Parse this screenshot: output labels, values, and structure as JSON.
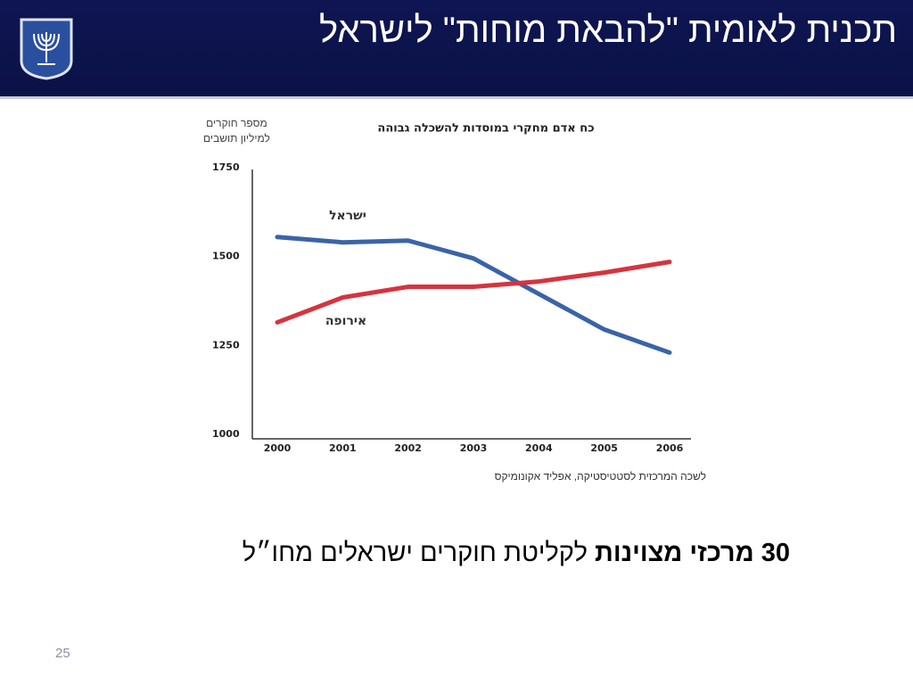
{
  "header": {
    "title": "תכנית לאומית \"להבאת מוחות\" לישראל"
  },
  "chart_data": {
    "type": "line",
    "title": "כח אדם מחקרי במוסדות להשכלה גבוהה",
    "ylabel": [
      "מספר חוקרים",
      "למיליון תושבים"
    ],
    "source": "לשכה המרכזית לסטטיסטיקה, אפליד אקונומיקס",
    "categories": [
      "2000",
      "2001",
      "2002",
      "2003",
      "2004",
      "2005",
      "2006"
    ],
    "series": [
      {
        "name": "ישראל",
        "color": "#3a64a6",
        "values": [
          1555,
          1540,
          1545,
          1495,
          1395,
          1295,
          1230
        ]
      },
      {
        "name": "אירופה",
        "color": "#d7333f",
        "values": [
          1315,
          1385,
          1415,
          1415,
          1430,
          1455,
          1485
        ]
      }
    ],
    "ylim": [
      1000,
      1750
    ],
    "yticks": [
      1000,
      1250,
      1500,
      1750
    ],
    "grid": false
  },
  "caption": {
    "bold": "30 מרכזי מצוינות",
    "text": "לקליטת חוקרים ישראלים מחו״ל"
  },
  "page_number": "25"
}
